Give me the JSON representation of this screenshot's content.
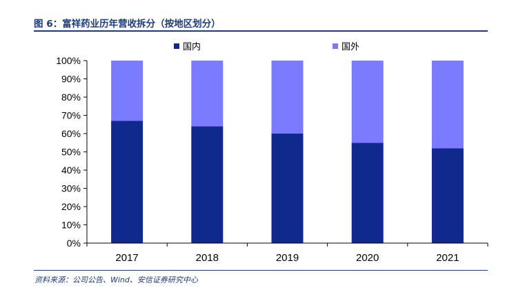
{
  "figure": {
    "title": "图 6：富祥药业历年营收拆分（按地区划分）",
    "source": "资料来源：公司公告、Wind、安信证券研究中心"
  },
  "colors": {
    "domestic": "#0f2a8c",
    "overseas": "#7b7bff",
    "accent": "#1f3a7a",
    "axis": "#000000"
  },
  "chart_data": {
    "type": "bar",
    "stacked": true,
    "categories": [
      "2017",
      "2018",
      "2019",
      "2020",
      "2021"
    ],
    "series": [
      {
        "name": "国内",
        "values": [
          67,
          64,
          60,
          55,
          52
        ]
      },
      {
        "name": "国外",
        "values": [
          33,
          36,
          40,
          45,
          48
        ]
      }
    ],
    "title": "",
    "xlabel": "",
    "ylabel": "",
    "ylim": [
      0,
      100
    ],
    "yticks": [
      "0%",
      "10%",
      "20%",
      "30%",
      "40%",
      "50%",
      "60%",
      "70%",
      "80%",
      "90%",
      "100%"
    ],
    "grid": false,
    "legend_position": "top"
  }
}
